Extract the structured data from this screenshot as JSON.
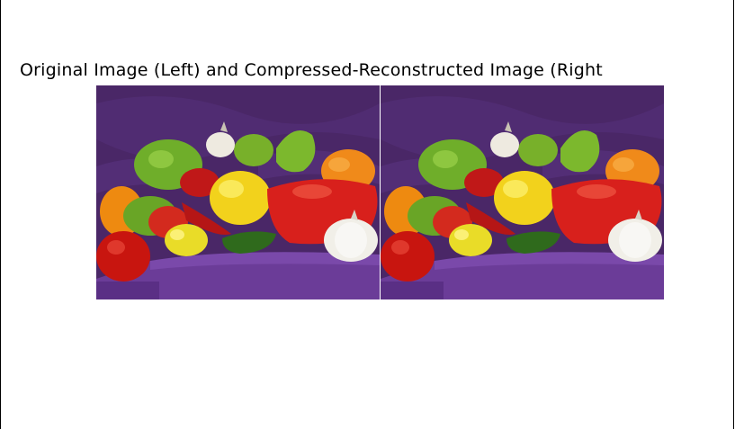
{
  "figure": {
    "title": "Original Image (Left) and Compressed-Reconstructed Image (Right",
    "panels": [
      {
        "name": "original-image",
        "content": "peppers-photo"
      },
      {
        "name": "reconstructed-image",
        "content": "peppers-photo"
      }
    ]
  },
  "colors": {
    "background": "#ffffff",
    "backdrop_purple": "#4a2767",
    "cloth_purple": "#6b3c98",
    "pepper_red": "#d8201c",
    "pepper_green": "#6fae2a",
    "pepper_yellow": "#f2d21c",
    "pepper_orange": "#f08a1a",
    "garlic_white": "#f1efe8"
  }
}
